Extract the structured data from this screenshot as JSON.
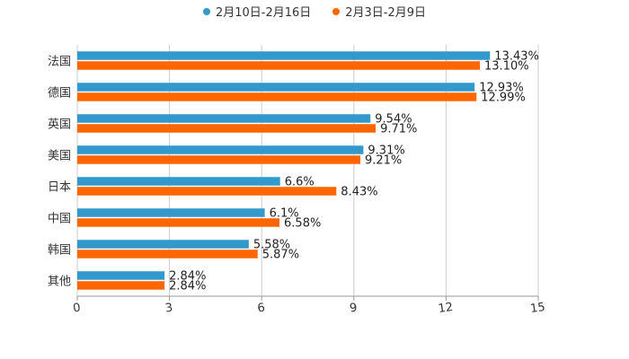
{
  "chart_data": {
    "type": "bar",
    "orientation": "horizontal",
    "title": "",
    "xlabel": "",
    "ylabel": "",
    "xlim": [
      0,
      15
    ],
    "x_ticks": [
      0,
      3,
      6,
      9,
      12,
      15
    ],
    "grid": true,
    "legend_position": "top-center",
    "categories": [
      "法国",
      "德国",
      "英国",
      "美国",
      "日本",
      "中国",
      "韩国",
      "其他"
    ],
    "series": [
      {
        "name": "2月10日-2月16日",
        "color": "#3398cc",
        "values": [
          13.43,
          12.93,
          9.54,
          9.31,
          6.6,
          6.1,
          5.58,
          2.84
        ],
        "labels": [
          "13.43%",
          "12.93%",
          "9.54%",
          "9.31%",
          "6.6%",
          "6.1%",
          "5.58%",
          "2.84%"
        ]
      },
      {
        "name": "2月3日-2月9日",
        "color": "#ff6600",
        "values": [
          13.1,
          12.99,
          9.71,
          9.21,
          8.43,
          6.58,
          5.87,
          2.84
        ],
        "labels": [
          "13.10%",
          "12.99%",
          "9.71%",
          "9.21%",
          "8.43%",
          "6.58%",
          "5.87%",
          "2.84%"
        ]
      }
    ]
  }
}
